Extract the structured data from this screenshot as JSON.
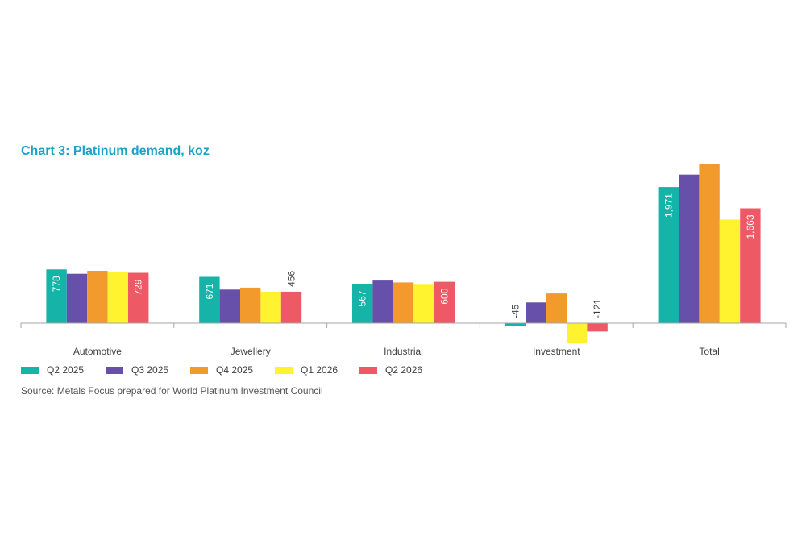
{
  "chart_data": {
    "type": "bar",
    "title": "Chart 3: Platinum demand, koz",
    "categories": [
      "Automotive",
      "Jewellery",
      "Industrial",
      "Investment",
      "Total"
    ],
    "series": [
      {
        "name": "Q2 2025",
        "color": "#16b3a8",
        "values": [
          778,
          671,
          567,
          -45,
          1971
        ],
        "labels": [
          "778",
          "671",
          "567",
          "-45",
          "1,971"
        ]
      },
      {
        "name": "Q3 2025",
        "color": "#6650aa",
        "values": [
          715,
          487,
          617,
          300,
          2150
        ],
        "labels": [
          "",
          "",
          "",
          "",
          ""
        ]
      },
      {
        "name": "Q4 2025",
        "color": "#f39a2d",
        "values": [
          758,
          515,
          590,
          430,
          2300
        ],
        "labels": [
          "",
          "",
          "",
          "",
          ""
        ]
      },
      {
        "name": "Q1 2026",
        "color": "#fff22e",
        "values": [
          740,
          455,
          557,
          -280,
          1500
        ],
        "labels": [
          "",
          "",
          "",
          "",
          ""
        ]
      },
      {
        "name": "Q2 2026",
        "color": "#ed5a66",
        "values": [
          729,
          456,
          600,
          -121,
          1663
        ],
        "labels": [
          "729",
          "456",
          "600",
          "-121",
          "1,663"
        ]
      }
    ],
    "ylim": [
      -350,
      2500
    ],
    "grid": false,
    "legend_position": "bottom-left"
  },
  "source": "Source: Metals Focus prepared for World Platinum Investment Council"
}
